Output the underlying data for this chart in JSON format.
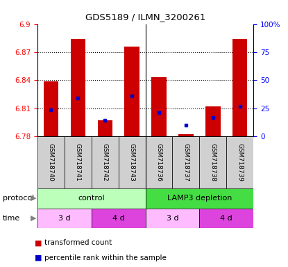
{
  "title": "GDS5189 / ILMN_3200261",
  "samples": [
    "GSM718740",
    "GSM718741",
    "GSM718742",
    "GSM718743",
    "GSM718736",
    "GSM718737",
    "GSM718738",
    "GSM718739"
  ],
  "red_values": [
    6.839,
    6.884,
    6.797,
    6.876,
    6.843,
    6.782,
    6.812,
    6.884
  ],
  "blue_values": [
    6.808,
    6.821,
    6.797,
    6.823,
    6.805,
    6.792,
    6.8,
    6.812
  ],
  "ymin": 6.78,
  "ymax": 6.9,
  "yticks": [
    6.78,
    6.81,
    6.84,
    6.87,
    6.9
  ],
  "ytick_labels": [
    "6.78",
    "6.81",
    "6.84",
    "6.87",
    "6.9"
  ],
  "right_yticks": [
    0,
    25,
    50,
    75,
    100
  ],
  "right_ytick_labels": [
    "0",
    "25",
    "50",
    "75",
    "100%"
  ],
  "bar_color": "#cc0000",
  "marker_color": "#0000cc",
  "bar_width": 0.55,
  "protocol_color_light": "#bbffbb",
  "protocol_color_dark": "#44dd44",
  "time_color_light": "#ffbbff",
  "time_color_dark": "#dd44dd",
  "legend_red": "transformed count",
  "legend_blue": "percentile rank within the sample",
  "bg_color": "#ffffff"
}
